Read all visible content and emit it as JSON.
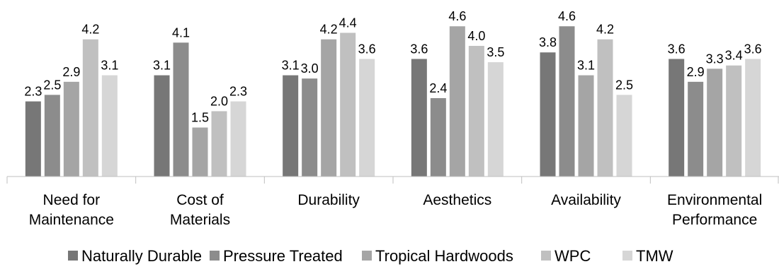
{
  "chart_data": {
    "type": "bar",
    "categories": [
      [
        "Need for",
        "Maintenance"
      ],
      [
        "Cost of",
        "Materials"
      ],
      [
        "Durability"
      ],
      [
        "Aesthetics"
      ],
      [
        "Availability"
      ],
      [
        "Environmental",
        "Performance"
      ]
    ],
    "series": [
      {
        "name": "Naturally Durable",
        "color": "#777777",
        "values": [
          2.3,
          3.1,
          3.1,
          3.6,
          3.8,
          3.6
        ]
      },
      {
        "name": "Pressure Treated",
        "color": "#8c8c8c",
        "values": [
          2.5,
          4.1,
          3.0,
          2.4,
          4.6,
          2.9
        ]
      },
      {
        "name": "Tropical Hardwoods",
        "color": "#a5a5a5",
        "values": [
          2.9,
          1.5,
          4.2,
          4.6,
          3.1,
          3.3
        ]
      },
      {
        "name": "WPC",
        "color": "#c0c0c0",
        "values": [
          4.2,
          2.0,
          4.4,
          4.0,
          4.2,
          3.4
        ]
      },
      {
        "name": "TMW",
        "color": "#d6d6d6",
        "values": [
          3.1,
          2.3,
          3.6,
          3.5,
          2.5,
          3.6
        ]
      }
    ],
    "value_labels": [
      [
        "2.3",
        "3.1",
        "3.1",
        "3.6",
        "3.8",
        "3.6"
      ],
      [
        "2.5",
        "4.1",
        "3.0",
        "2.4",
        "4.6",
        "2.9"
      ],
      [
        "2.9",
        "1.5",
        "4.2",
        "4.6",
        "3.1",
        "3.3"
      ],
      [
        "4.2",
        "2.0",
        "4.4",
        "4.0",
        "4.2",
        "3.4"
      ],
      [
        "3.1",
        "2.3",
        "3.6",
        "3.5",
        "2.5",
        "3.6"
      ]
    ],
    "ylim": [
      0,
      5
    ],
    "grid": false,
    "legend": "bottom",
    "data_labels": true
  }
}
